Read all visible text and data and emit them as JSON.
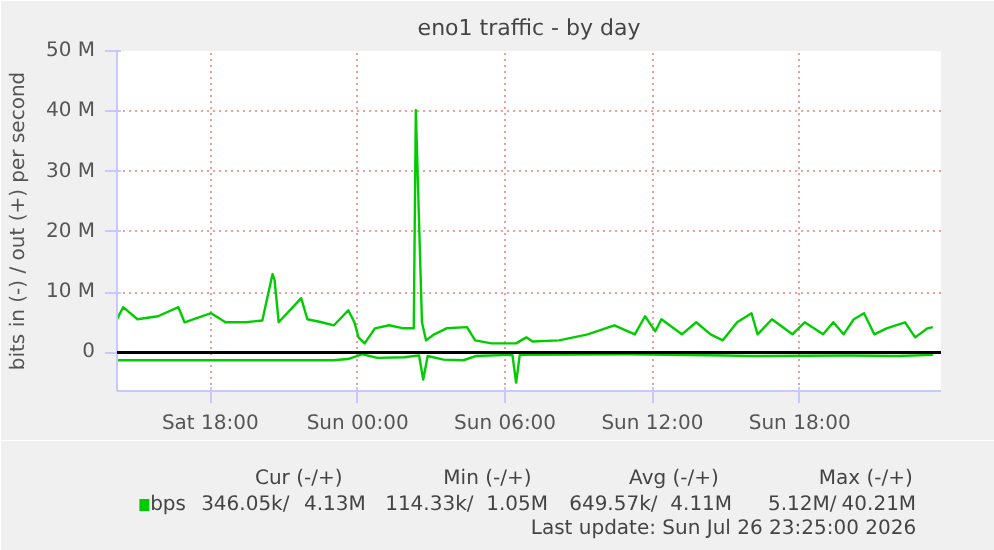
{
  "chart_data": {
    "type": "line",
    "title": "eno1 traffic - by day",
    "ylabel": "bits in (-) / out (+) per second",
    "xlim": [
      "2026-07-25T14:12",
      "2026-07-26T23:45"
    ],
    "ylim": [
      -6.4,
      50
    ],
    "xticks": [
      {
        "value": "2026-07-25T18:00",
        "label": "Sat 18:00"
      },
      {
        "value": "2026-07-26T00:00",
        "label": "Sun 00:00"
      },
      {
        "value": "2026-07-26T06:00",
        "label": "Sun 06:00"
      },
      {
        "value": "2026-07-26T12:00",
        "label": "Sun 12:00"
      },
      {
        "value": "2026-07-26T18:00",
        "label": "Sun 18:00"
      }
    ],
    "yticks": [
      0,
      {
        "value": 10,
        "label": "10 M"
      },
      {
        "value": 20,
        "label": "20 M"
      },
      {
        "value": 30,
        "label": "30 M"
      },
      {
        "value": 40,
        "label": "40 M"
      },
      {
        "value": 50,
        "label": "50 M"
      }
    ],
    "grid": true,
    "legend": "bottom",
    "marker": "none",
    "line_style": "solid",
    "ref_lines": [
      {
        "axis": "y",
        "value": 0,
        "color": "#000000"
      }
    ],
    "series": [
      {
        "name": "bps",
        "color": "#00cc00",
        "x": [
          "2026-07-25T14:12",
          "2026-07-25T14:27",
          "2026-07-25T15:02",
          "2026-07-25T15:52",
          "2026-07-25T16:42",
          "2026-07-25T16:57",
          "2026-07-25T18:02",
          "2026-07-25T18:37",
          "2026-07-25T19:27",
          "2026-07-25T20:07",
          "2026-07-25T20:32",
          "2026-07-25T20:37",
          "2026-07-25T20:47",
          "2026-07-25T21:42",
          "2026-07-25T21:57",
          "2026-07-25T22:32",
          "2026-07-25T23:02",
          "2026-07-25T23:37",
          "2026-07-25T23:52",
          "2026-07-26T00:02",
          "2026-07-26T00:17",
          "2026-07-26T00:42",
          "2026-07-26T01:17",
          "2026-07-26T01:52",
          "2026-07-26T02:17",
          "2026-07-26T02:22",
          "2026-07-26T02:37",
          "2026-07-26T02:47",
          "2026-07-26T03:07",
          "2026-07-26T03:37",
          "2026-07-26T04:27",
          "2026-07-26T04:47",
          "2026-07-26T05:27",
          "2026-07-26T06:27",
          "2026-07-26T06:52",
          "2026-07-26T07:07",
          "2026-07-26T08:12",
          "2026-07-26T09:22",
          "2026-07-26T10:27",
          "2026-07-26T11:17",
          "2026-07-26T11:42",
          "2026-07-26T12:07",
          "2026-07-26T12:22",
          "2026-07-26T13:12",
          "2026-07-26T13:47",
          "2026-07-26T14:22",
          "2026-07-26T14:52",
          "2026-07-26T15:27",
          "2026-07-26T16:02",
          "2026-07-26T16:17",
          "2026-07-26T16:52",
          "2026-07-26T17:42",
          "2026-07-26T18:12",
          "2026-07-26T18:57",
          "2026-07-26T19:22",
          "2026-07-26T19:47",
          "2026-07-26T20:12",
          "2026-07-26T20:37",
          "2026-07-26T21:02",
          "2026-07-26T21:32",
          "2026-07-26T22:17",
          "2026-07-26T22:42",
          "2026-07-26T23:12",
          "2026-07-26T23:25"
        ],
        "values": [
          5.5,
          7.5,
          5.5,
          6,
          7.5,
          5,
          6.5,
          5,
          5,
          5.3,
          13,
          12,
          5,
          9,
          5.5,
          5,
          4.5,
          7,
          5,
          2.5,
          1.5,
          4,
          4.5,
          4,
          4,
          40.2,
          5,
          2,
          3,
          4,
          4.2,
          2,
          1.5,
          1.5,
          2.5,
          1.8,
          2,
          3,
          4.5,
          3,
          6,
          3.5,
          5.5,
          3,
          5,
          3,
          2,
          5,
          6.5,
          3,
          5.5,
          3,
          5,
          3,
          5,
          3,
          5.5,
          6.5,
          3,
          4,
          5,
          2.5,
          4,
          4.2
        ]
      },
      {
        "color": "#00cc00",
        "x": [
          "2026-07-25T14:12",
          "2026-07-25T23:00",
          "2026-07-25T23:36",
          "2026-07-26T00:12",
          "2026-07-26T00:48",
          "2026-07-26T01:54",
          "2026-07-26T02:30",
          "2026-07-26T02:40",
          "2026-07-26T02:51",
          "2026-07-26T03:30",
          "2026-07-26T04:18",
          "2026-07-26T04:48",
          "2026-07-26T06:18",
          "2026-07-26T06:27",
          "2026-07-26T06:36",
          "2026-07-26T11:00",
          "2026-07-26T15:00",
          "2026-07-26T16:00",
          "2026-07-26T20:00",
          "2026-07-26T22:00",
          "2026-07-26T23:25"
        ],
        "values": [
          -1.3,
          -1.3,
          -1.1,
          -0.3,
          -0.9,
          -0.8,
          -0.5,
          -4.5,
          -0.6,
          -1.2,
          -1.3,
          -0.6,
          -0.4,
          -5,
          -0.4,
          -0.3,
          -0.5,
          -0.6,
          -0.5,
          -0.6,
          -0.4
        ]
      }
    ],
    "annotations": [
      "Cur (-/+)",
      "Min (-/+)",
      "Avg (-/+)",
      "Max (-/+)",
      "346.05k/",
      "4.13M",
      "114.33k/",
      "1.05M",
      "649.57k/",
      "4.11M",
      "5.12M/",
      "40.21M",
      "Last update: Sun Jul 26 23:25:00 2026"
    ]
  }
}
